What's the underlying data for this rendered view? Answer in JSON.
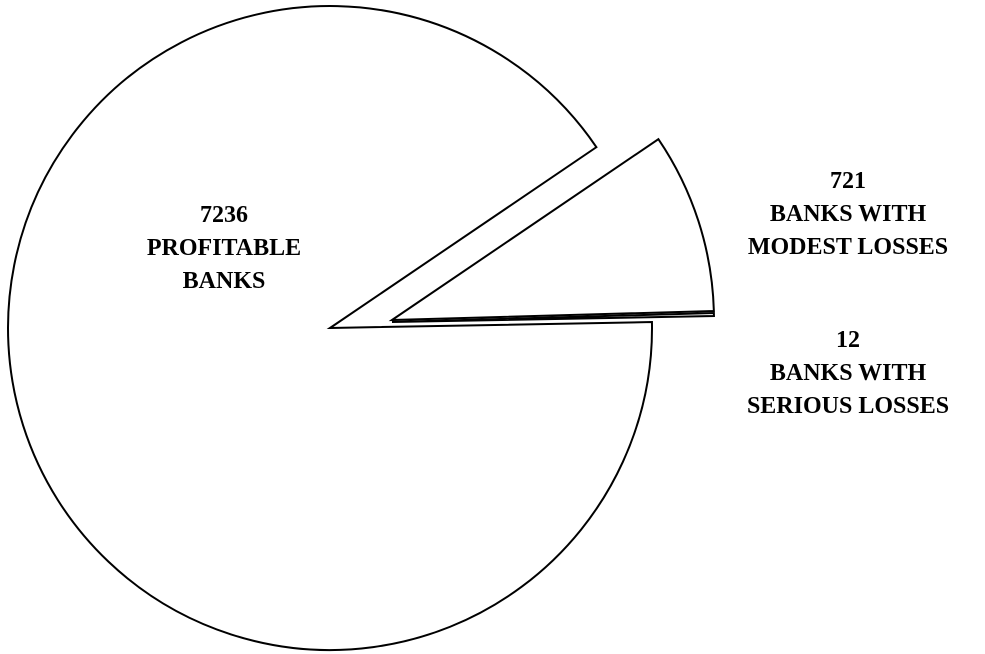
{
  "chart_data": {
    "type": "pie",
    "exploded": true,
    "stroke_color": "#000000",
    "fill_color": "#ffffff",
    "slices": [
      {
        "value": 7236,
        "label_value": "7236",
        "label_lines": [
          "PROFITABLE",
          "BANKS"
        ]
      },
      {
        "value": 721,
        "label_value": "721",
        "label_lines": [
          "BANKS WITH",
          "MODEST LOSSES"
        ]
      },
      {
        "value": 12,
        "label_value": "12",
        "label_lines": [
          "BANKS WITH",
          "SERIOUS LOSSES"
        ]
      }
    ]
  }
}
